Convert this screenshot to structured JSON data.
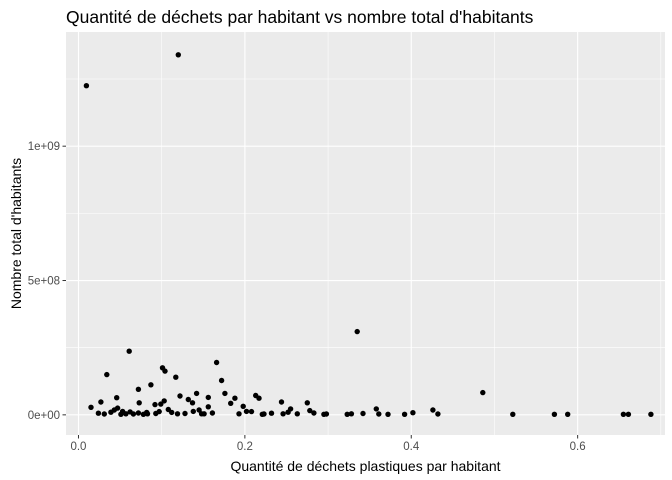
{
  "chart_data": {
    "type": "scatter",
    "title": "Quantité de déchets par habitant vs nombre total d'habitants",
    "xlabel": "Quantité de déchets plastiques par habitant",
    "ylabel": "Nombre total d'habitants",
    "xlim": [
      -0.015,
      0.705
    ],
    "ylim": [
      -75000000,
      1425000000
    ],
    "x_ticks": [
      {
        "value": 0.0,
        "label": "0.0"
      },
      {
        "value": 0.2,
        "label": "0.2"
      },
      {
        "value": 0.4,
        "label": "0.4"
      },
      {
        "value": 0.6,
        "label": "0.6"
      }
    ],
    "y_ticks": [
      {
        "value": 0,
        "label": "0e+00"
      },
      {
        "value": 500000000,
        "label": "5e+08"
      },
      {
        "value": 1000000000,
        "label": "1e+09"
      }
    ],
    "grid": true,
    "background": "#ebebeb",
    "grid_color": "#ffffff",
    "point_color": "#000000",
    "points": [
      [
        0.0095,
        1225000000
      ],
      [
        0.12,
        1340000000
      ],
      [
        0.335,
        310000000
      ],
      [
        0.061,
        237000000
      ],
      [
        0.166,
        195000000
      ],
      [
        0.101,
        175000000
      ],
      [
        0.104,
        163000000
      ],
      [
        0.034,
        150000000
      ],
      [
        0.117,
        140000000
      ],
      [
        0.172,
        128000000
      ],
      [
        0.087,
        112000000
      ],
      [
        0.486,
        83000000
      ],
      [
        0.176,
        80000000
      ],
      [
        0.072,
        95000000
      ],
      [
        0.156,
        65000000
      ],
      [
        0.122,
        70000000
      ],
      [
        0.142,
        80000000
      ],
      [
        0.213,
        72000000
      ],
      [
        0.217,
        62000000
      ],
      [
        0.188,
        62000000
      ],
      [
        0.132,
        57000000
      ],
      [
        0.244,
        48000000
      ],
      [
        0.027,
        48000000
      ],
      [
        0.073,
        45000000
      ],
      [
        0.099,
        40000000
      ],
      [
        0.092,
        38000000
      ],
      [
        0.015,
        28000000
      ],
      [
        0.047,
        25000000
      ],
      [
        0.156,
        30000000
      ],
      [
        0.183,
        43000000
      ],
      [
        0.198,
        32000000
      ],
      [
        0.275,
        45000000
      ],
      [
        0.358,
        22000000
      ],
      [
        0.426,
        18000000
      ],
      [
        0.043,
        18000000
      ],
      [
        0.053,
        13000000
      ],
      [
        0.062,
        11000000
      ],
      [
        0.072,
        7000000
      ],
      [
        0.082,
        9000000
      ],
      [
        0.093,
        5000000
      ],
      [
        0.112,
        9000000
      ],
      [
        0.138,
        13000000
      ],
      [
        0.148,
        4000000
      ],
      [
        0.161,
        7000000
      ],
      [
        0.193,
        4000000
      ],
      [
        0.202,
        13000000
      ],
      [
        0.223,
        3000000
      ],
      [
        0.232,
        6000000
      ],
      [
        0.252,
        10000000
      ],
      [
        0.263,
        4000000
      ],
      [
        0.283,
        7000000
      ],
      [
        0.298,
        3000000
      ],
      [
        0.323,
        2000000
      ],
      [
        0.342,
        5000000
      ],
      [
        0.361,
        3000000
      ],
      [
        0.372,
        2000000
      ],
      [
        0.392,
        2000000
      ],
      [
        0.402,
        8000000
      ],
      [
        0.432,
        3000000
      ],
      [
        0.522,
        2000000
      ],
      [
        0.572,
        2000000
      ],
      [
        0.588,
        2000000
      ],
      [
        0.655,
        2000000
      ],
      [
        0.661,
        2000000
      ],
      [
        0.688,
        2000000
      ],
      [
        0.024,
        6000000
      ],
      [
        0.031,
        3000000
      ],
      [
        0.039,
        10000000
      ],
      [
        0.051,
        2000000
      ],
      [
        0.057,
        4000000
      ],
      [
        0.066,
        3000000
      ],
      [
        0.078,
        2000000
      ],
      [
        0.097,
        12000000
      ],
      [
        0.108,
        20000000
      ],
      [
        0.128,
        5000000
      ],
      [
        0.145,
        18000000
      ],
      [
        0.151,
        4000000
      ],
      [
        0.208,
        12000000
      ],
      [
        0.221,
        2000000
      ],
      [
        0.246,
        4000000
      ],
      [
        0.255,
        22000000
      ],
      [
        0.278,
        16000000
      ],
      [
        0.295,
        2000000
      ],
      [
        0.328,
        4000000
      ],
      [
        0.046,
        64000000
      ],
      [
        0.083,
        4000000
      ],
      [
        0.103,
        52000000
      ],
      [
        0.119,
        4000000
      ],
      [
        0.137,
        45000000
      ]
    ]
  }
}
